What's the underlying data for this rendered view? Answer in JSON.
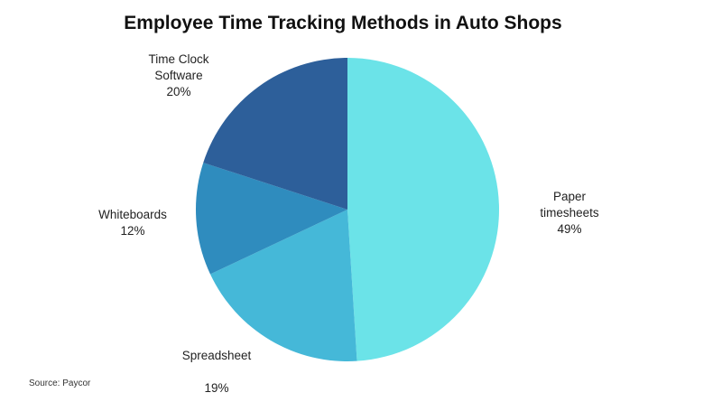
{
  "chart_data": {
    "type": "pie",
    "title": "Employee Time Tracking Methods in Auto Shops",
    "source": "Source: Paycor",
    "slices": [
      {
        "name": "Paper timesheets",
        "label_lines": [
          "Paper",
          "timesheets"
        ],
        "value_label": "49%",
        "value": 49,
        "color": "#6be3e8"
      },
      {
        "name": "Spreadsheet",
        "label_lines": [
          "Spreadsheet"
        ],
        "value_label": "19%",
        "value": 19,
        "color": "#45b8d8"
      },
      {
        "name": "Whiteboards",
        "label_lines": [
          "Whiteboards"
        ],
        "value_label": "12%",
        "value": 12,
        "color": "#2f8cbe"
      },
      {
        "name": "Time Clock Software",
        "label_lines": [
          "Time Clock",
          "Software"
        ],
        "value_label": "20%",
        "value": 20,
        "color": "#2d5f9a"
      }
    ]
  }
}
